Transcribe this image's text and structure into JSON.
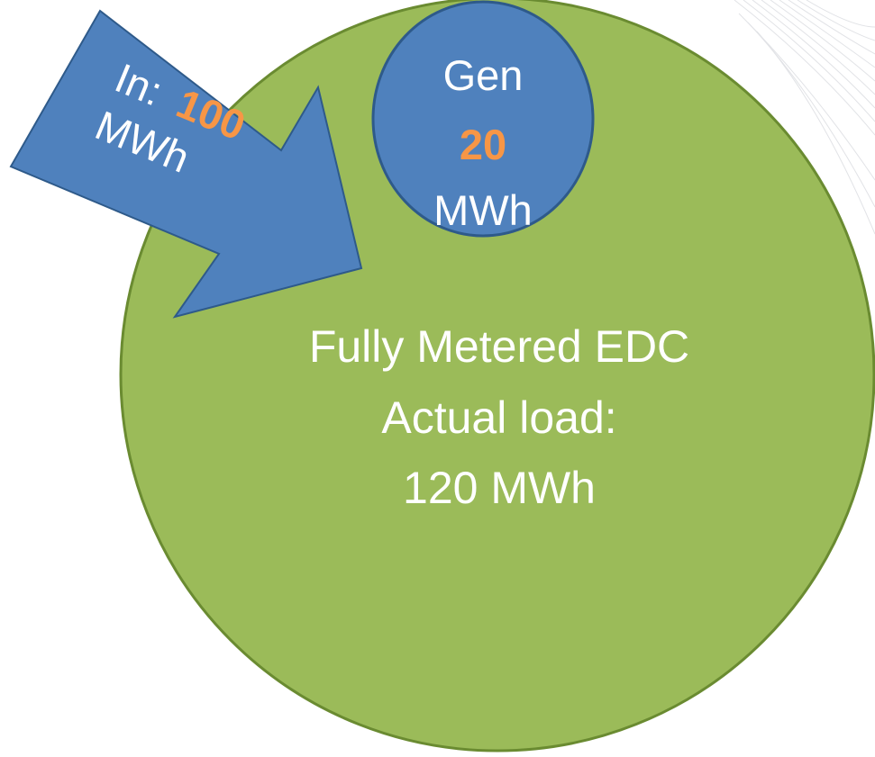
{
  "colors": {
    "background": "#ffffff",
    "main_fill": "#9BBB59",
    "main_stroke": "#6A8B31",
    "blue_fill": "#4F81BD",
    "blue_stroke": "#2E5A8A",
    "text_white": "#FFFFFF",
    "accent_orange": "#F79646",
    "watermark_lines": "#DADCE0"
  },
  "main_circle": {
    "line1": "Fully Metered EDC",
    "line2": "Actual load:",
    "line3": "120 MWh"
  },
  "gen_circle": {
    "label": "Gen",
    "value": "20",
    "unit": "MWh"
  },
  "input_arrow": {
    "label": "In:",
    "value": "100",
    "unit": "MWh"
  }
}
